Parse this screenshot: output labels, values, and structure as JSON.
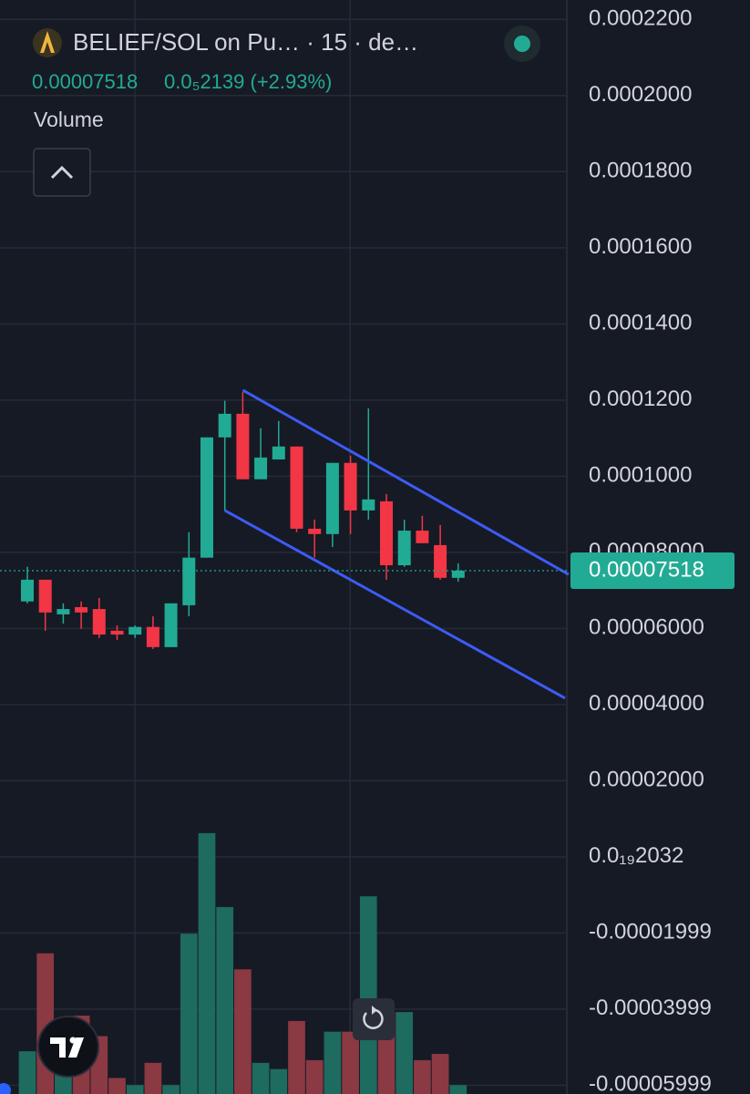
{
  "chart_data": {
    "type": "candlestick",
    "title": "BELIEF/SOL on Pu… · 15 · de…",
    "last_price": 7.518e-05,
    "change_label": "0.0₅2139 (+2.93%)",
    "volume_label": "Volume",
    "up_color": "#22ab94",
    "down_color": "#f23645",
    "volume_up_color": "#1e6b5f",
    "volume_down_color": "#8b3943",
    "channel_color": "#3d5bf5",
    "ylim": [
      -6.23e-05,
      0.0002251
    ],
    "yticks": [
      {
        "value": 0.00022,
        "label": "0.0002200"
      },
      {
        "value": 0.0002,
        "label": "0.0002000"
      },
      {
        "value": 0.00018,
        "label": "0.0001800"
      },
      {
        "value": 0.00016,
        "label": "0.0001600"
      },
      {
        "value": 0.00014,
        "label": "0.0001400"
      },
      {
        "value": 0.00012,
        "label": "0.0001200"
      },
      {
        "value": 0.0001,
        "label": "0.0001000"
      },
      {
        "value": 8e-05,
        "label": "0.00008000"
      },
      {
        "value": 6e-05,
        "label": "0.00006000"
      },
      {
        "value": 4e-05,
        "label": "0.00004000"
      },
      {
        "value": 2e-05,
        "label": "0.00002000"
      },
      {
        "value": 2.032e-20,
        "label": "0.0₁₉2032"
      },
      {
        "value": -1.999e-05,
        "label": "-0.00001999"
      },
      {
        "value": -3.999e-05,
        "label": "-0.00003999"
      },
      {
        "value": -5.999e-05,
        "label": "-0.00005999"
      }
    ],
    "open": [
      6.71e-05,
      7.28e-05,
      6.37e-05,
      6.56e-05,
      6.51e-05,
      5.94e-05,
      5.84e-05,
      6.04e-05,
      5.51e-05,
      6.61e-05,
      7.86e-05,
      0.0001102,
      0.0001164,
      9.92e-05,
      0.0001044,
      0.0001078,
      8.62e-05,
      8.48e-05,
      0.0001035,
      9.1e-05,
      9.34e-05,
      7.66e-05,
      8.57e-05,
      8.19e-05,
      7.33e-05
    ],
    "high": [
      7.62e-05,
      7.28e-05,
      6.66e-05,
      6.71e-05,
      6.8e-05,
      6.08e-05,
      6.08e-05,
      6.32e-05,
      6.66e-05,
      8.53e-05,
      0.0001102,
      0.0001198,
      0.0001221,
      0.0001126,
      0.0001145,
      0.0001078,
      8.86e-05,
      0.0001035,
      0.0001054,
      0.0001178,
      9.53e-05,
      8.86e-05,
      8.96e-05,
      8.72e-05,
      7.71e-05
    ],
    "low": [
      6.66e-05,
      5.94e-05,
      6.13e-05,
      5.99e-05,
      5.75e-05,
      5.7e-05,
      5.75e-05,
      5.46e-05,
      5.51e-05,
      6.32e-05,
      7.86e-05,
      9.1e-05,
      9.92e-05,
      9.92e-05,
      0.0001044,
      8.53e-05,
      7.86e-05,
      8.14e-05,
      8.48e-05,
      8.86e-05,
      7.28e-05,
      7.62e-05,
      8.24e-05,
      7.28e-05,
      7.23e-05
    ],
    "close": [
      7.28e-05,
      6.42e-05,
      6.51e-05,
      6.42e-05,
      5.84e-05,
      5.84e-05,
      6.04e-05,
      5.51e-05,
      6.66e-05,
      7.86e-05,
      0.0001102,
      0.0001164,
      9.92e-05,
      0.0001049,
      0.0001078,
      8.62e-05,
      8.48e-05,
      0.0001035,
      9.1e-05,
      9.39e-05,
      7.66e-05,
      8.57e-05,
      8.24e-05,
      7.33e-05,
      7.518e-05
    ],
    "volume": [
      48,
      158,
      85,
      88,
      65,
      18,
      10,
      35,
      10,
      180,
      293,
      210,
      140,
      35,
      28,
      82,
      38,
      70,
      70,
      222,
      92,
      92,
      38,
      45,
      10
    ],
    "volume_ylim": [
      0,
      300
    ],
    "channel": [
      {
        "x": [
          12,
          30.15
        ],
        "y": [
          0.0001226,
          7.42e-05
        ]
      },
      {
        "x": [
          11,
          29.95
        ],
        "y": [
          9.1e-05,
          4.17e-05
        ]
      }
    ]
  }
}
